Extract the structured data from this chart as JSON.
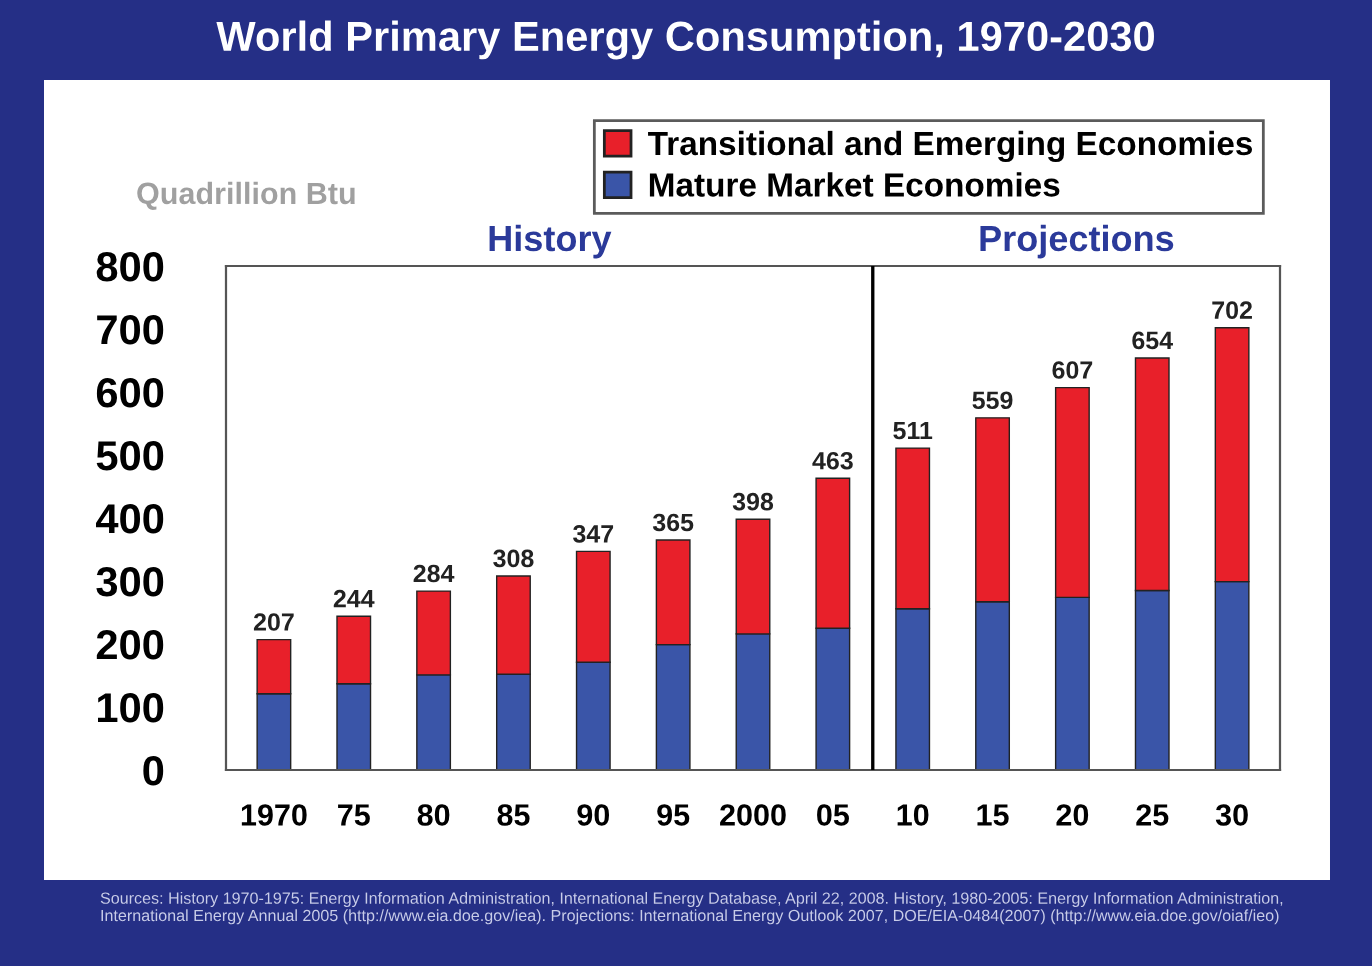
{
  "chart_data": {
    "type": "bar",
    "title": "World Primary Energy Consumption, 1970-2030",
    "ylabel": "Quadrillion Btu",
    "categories": [
      "1970",
      "75",
      "80",
      "85",
      "90",
      "95",
      "2000",
      "05",
      "10",
      "15",
      "20",
      "25",
      "30"
    ],
    "stacked": true,
    "series": [
      {
        "name": "Mature Market Economies",
        "color": "#3a55a8",
        "values": [
          121,
          137,
          151,
          152,
          171,
          199,
          216,
          225,
          256,
          267,
          274,
          285,
          299
        ]
      },
      {
        "name": "Transitional and Emerging Economies",
        "color": "#e8202a",
        "values": [
          86,
          107,
          133,
          156,
          176,
          166,
          182,
          238,
          255,
          292,
          333,
          369,
          403
        ]
      }
    ],
    "totals": [
      "207",
      "244",
      "284",
      "308",
      "347",
      "365",
      "398",
      "463",
      "511",
      "559",
      "607",
      "654",
      "702"
    ],
    "ylim": [
      0,
      800
    ],
    "yticks": [
      0,
      100,
      200,
      300,
      400,
      500,
      600,
      700,
      800
    ],
    "grid": false,
    "legend": "top right",
    "annotations": [
      "History",
      "Projections",
      "Sources: History 1970-1975: Energy Information Administration, International Energy Database, April 22, 2008. History, 1980-2005: Energy Information Administration, International Energy Annual 2005 (http://www.eia.doe.gov/iea). Projections: International Energy Outlook 2007, DOE/EIA-0484(2007) (http://www.eia.doe.gov/oiaf/ieo)"
    ]
  }
}
